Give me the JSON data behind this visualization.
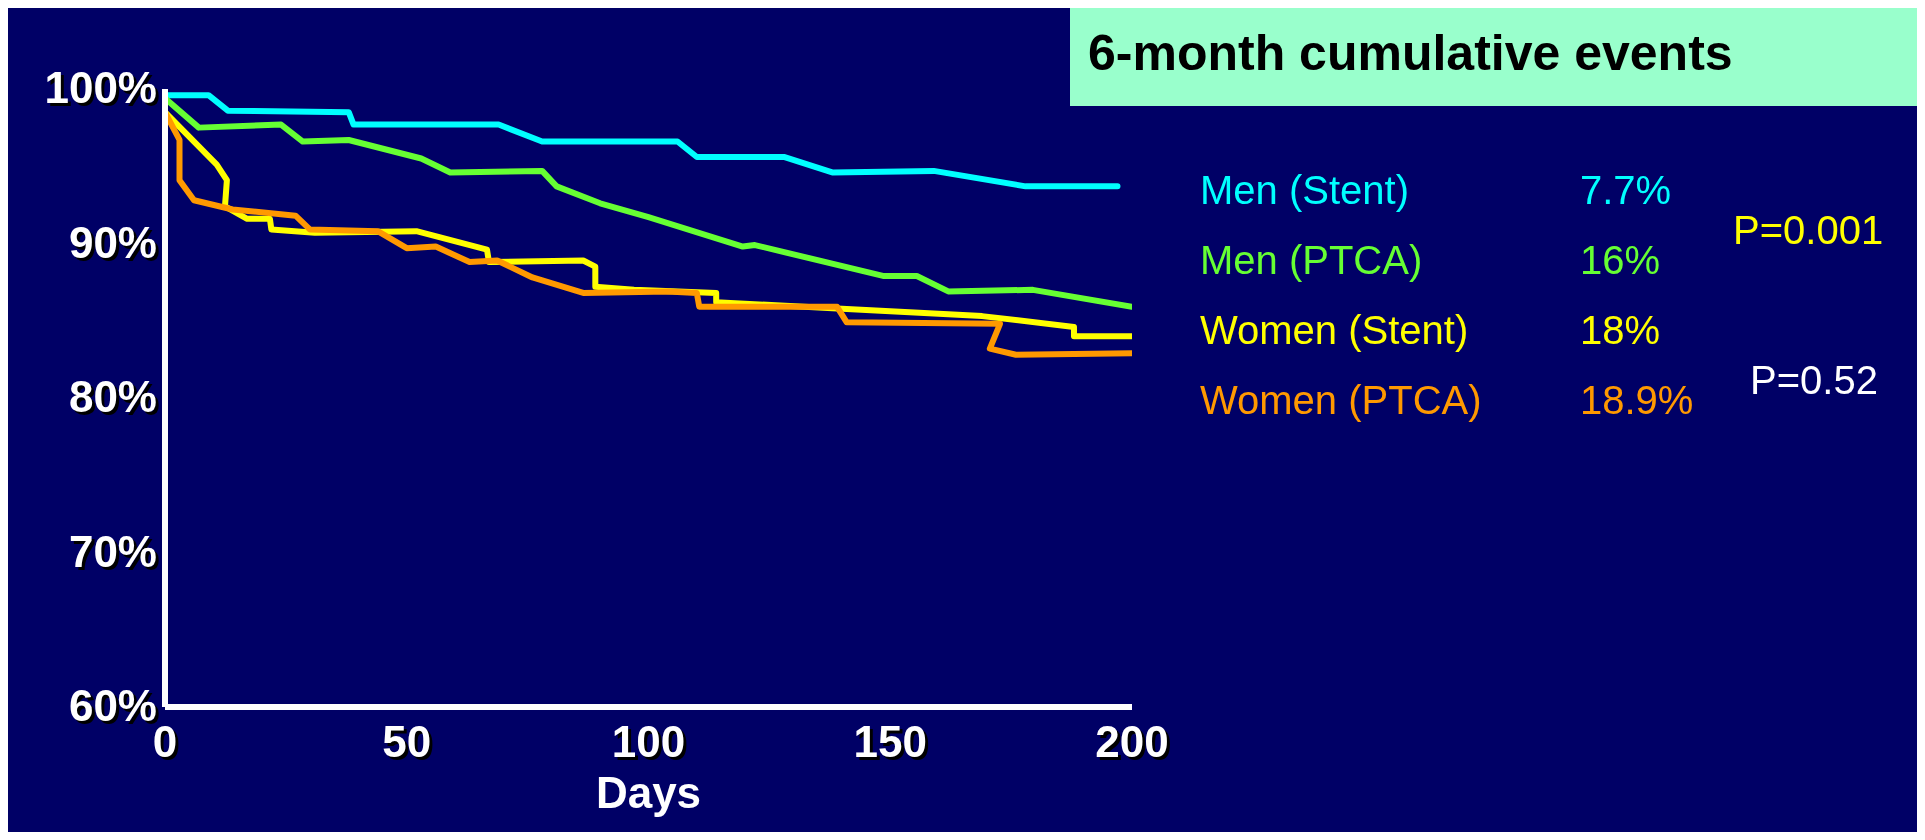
{
  "chart_data": {
    "type": "line",
    "title": "6-month cumulative events",
    "xlabel": "Days",
    "xlim": [
      0,
      200
    ],
    "xticks": [
      0,
      50,
      100,
      150,
      200
    ],
    "ylim": [
      60,
      100
    ],
    "yticks": [
      {
        "value": 60,
        "label": "60%"
      },
      {
        "value": 70,
        "label": "70%"
      },
      {
        "value": 80,
        "label": "80%"
      },
      {
        "value": 90,
        "label": "90%"
      },
      {
        "value": 100,
        "label": "100%"
      }
    ],
    "grid": false,
    "legend": "right",
    "marker": "none",
    "line_style": "solid",
    "series": [
      {
        "name": "Men (Stent)",
        "color": "#00ffff",
        "x": [
          0,
          9,
          13,
          38,
          39,
          69,
          78,
          100,
          106,
          110,
          128,
          138,
          159,
          178,
          197
        ],
        "values": [
          99.6,
          99.6,
          98.6,
          98.5,
          97.7,
          97.7,
          96.6,
          96.6,
          96.6,
          95.6,
          95.6,
          94.6,
          94.7,
          93.7,
          93.7
        ]
      },
      {
        "name": "Men (PTCA)",
        "color": "#66ff33",
        "x": [
          0,
          7,
          24,
          28.5,
          38,
          53,
          59,
          78,
          81,
          90,
          100,
          119.5,
          122,
          148.5,
          155.5,
          162,
          179.5,
          200
        ],
        "values": [
          99.4,
          97.5,
          97.7,
          96.6,
          96.7,
          95.5,
          94.6,
          94.7,
          93.7,
          92.6,
          91.7,
          89.8,
          89.9,
          87.9,
          87.9,
          86.9,
          87,
          85.9
        ]
      },
      {
        "name": "Women (Stent)",
        "color": "#ffff00",
        "x": [
          0,
          10.7,
          12.8,
          12.4,
          17,
          21.7,
          22,
          31,
          52,
          66.6,
          67,
          86.5,
          89,
          89,
          97,
          114,
          114,
          139,
          169,
          188,
          188,
          200
        ],
        "values": [
          98.5,
          95.1,
          94.1,
          92.4,
          91.6,
          91.6,
          90.9,
          90.7,
          90.8,
          89.6,
          88.8,
          88.9,
          88.5,
          87.2,
          87,
          86.8,
          86.2,
          85.8,
          85.3,
          84.6,
          84,
          84
        ]
      },
      {
        "name": "Women (PTCA)",
        "color": "#ff9900",
        "x": [
          0,
          3,
          3,
          6,
          14,
          27,
          30,
          44,
          50,
          56,
          63,
          68.7,
          76,
          86.5,
          104,
          110,
          110.5,
          139,
          141,
          172.7,
          170.6,
          176,
          200
        ],
        "values": [
          98.5,
          96.7,
          94.1,
          92.8,
          92.2,
          91.8,
          90.9,
          90.8,
          89.7,
          89.8,
          88.8,
          88.9,
          87.8,
          86.8,
          86.9,
          86.8,
          85.9,
          85.9,
          84.9,
          84.8,
          83.2,
          82.8,
          82.9
        ]
      }
    ],
    "annotations": [
      "7.7%",
      "16%",
      "18%",
      "18.9%",
      "P=0.001",
      "P=0.52"
    ]
  }
}
